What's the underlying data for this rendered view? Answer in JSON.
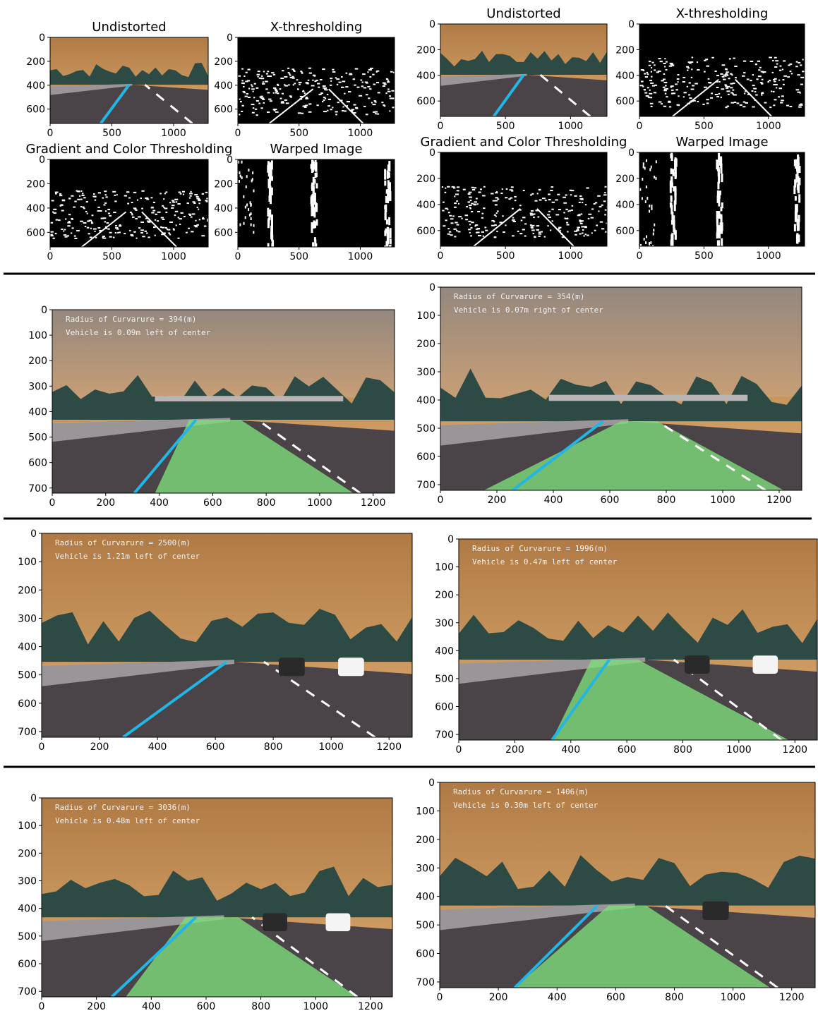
{
  "colors": {
    "sky_top": "#b7824a",
    "sky_bottom": "#d9a76c",
    "road": "#4a4348",
    "lane_fill": "#7ddc7a",
    "left_lane": "#22b6e6",
    "trees": "#2d4a44",
    "overlay_text": "#f2f2f2"
  },
  "top_row": {
    "left": {
      "panels": [
        {
          "title": "Undistorted",
          "kind": "road",
          "xticks": [
            "0",
            "500",
            "1000"
          ],
          "yticks": [
            "0",
            "200",
            "400",
            "600"
          ]
        },
        {
          "title": "X-thresholding",
          "kind": "binary",
          "xticks": [
            "0",
            "500",
            "1000"
          ],
          "yticks": [
            "0",
            "200",
            "400",
            "600"
          ]
        },
        {
          "title": "Gradient and Color Thresholding",
          "kind": "binary",
          "xticks": [
            "0",
            "500",
            "1000"
          ],
          "yticks": [
            "0",
            "200",
            "400",
            "600"
          ]
        },
        {
          "title": "Warped Image",
          "kind": "warped",
          "xticks": [
            "0",
            "500",
            "1000"
          ],
          "yticks": [
            "0",
            "200",
            "400",
            "600"
          ]
        }
      ]
    },
    "right": {
      "panels": [
        {
          "title": "Undistorted",
          "kind": "road",
          "xticks": [
            "0",
            "500",
            "1000"
          ],
          "yticks": [
            "0",
            "200",
            "400",
            "600"
          ]
        },
        {
          "title": "X-thresholding",
          "kind": "binary",
          "xticks": [
            "0",
            "500",
            "1000"
          ],
          "yticks": [
            "0",
            "200",
            "400",
            "600"
          ]
        },
        {
          "title": "Gradient and Color Thresholding",
          "kind": "binary",
          "xticks": [
            "0",
            "500",
            "1000"
          ],
          "yticks": [
            "0",
            "200",
            "400",
            "600"
          ]
        },
        {
          "title": "Warped Image",
          "kind": "warped",
          "xticks": [
            "0",
            "500",
            "1000"
          ],
          "yticks": [
            "0",
            "200",
            "400",
            "600"
          ]
        }
      ]
    }
  },
  "results": [
    {
      "curvature": "Radius of Curvarure = 394(m)",
      "offset": "Vehicle is 0.09m left of center",
      "xticks": [
        "0",
        "200",
        "400",
        "600",
        "800",
        "1000",
        "1200"
      ],
      "yticks": [
        "0",
        "100",
        "200",
        "300",
        "400",
        "500",
        "600",
        "700"
      ]
    },
    {
      "curvature": "Radius of Curvarure = 354(m)",
      "offset": "Vehicle is 0.07m right of center",
      "xticks": [
        "0",
        "200",
        "400",
        "600",
        "800",
        "1000",
        "1200"
      ],
      "yticks": [
        "0",
        "100",
        "200",
        "300",
        "400",
        "500",
        "600",
        "700"
      ]
    },
    {
      "curvature": "Radius of Curvarure = 2500(m)",
      "offset": "Vehicle is 1.21m left of center",
      "xticks": [
        "0",
        "200",
        "400",
        "600",
        "800",
        "1000",
        "1200"
      ],
      "yticks": [
        "0",
        "100",
        "200",
        "300",
        "400",
        "500",
        "600",
        "700"
      ]
    },
    {
      "curvature": "Radius of Curvarure = 1996(m)",
      "offset": "Vehicle is 0.47m left of center",
      "xticks": [
        "0",
        "200",
        "400",
        "600",
        "800",
        "1000",
        "1200"
      ],
      "yticks": [
        "0",
        "100",
        "200",
        "300",
        "400",
        "500",
        "600",
        "700"
      ]
    },
    {
      "curvature": "Radius of Curvarure = 3036(m)",
      "offset": "Vehicle is 0.48m left of center",
      "xticks": [
        "0",
        "200",
        "400",
        "600",
        "800",
        "1000",
        "1200"
      ],
      "yticks": [
        "0",
        "100",
        "200",
        "300",
        "400",
        "500",
        "600",
        "700"
      ]
    },
    {
      "curvature": "Radius of Curvarure = 1406(m)",
      "offset": "Vehicle is 0.30m left of center",
      "xticks": [
        "0",
        "200",
        "400",
        "600",
        "800",
        "1000",
        "1200"
      ],
      "yticks": [
        "0",
        "100",
        "200",
        "300",
        "400",
        "500",
        "600",
        "700"
      ]
    }
  ]
}
